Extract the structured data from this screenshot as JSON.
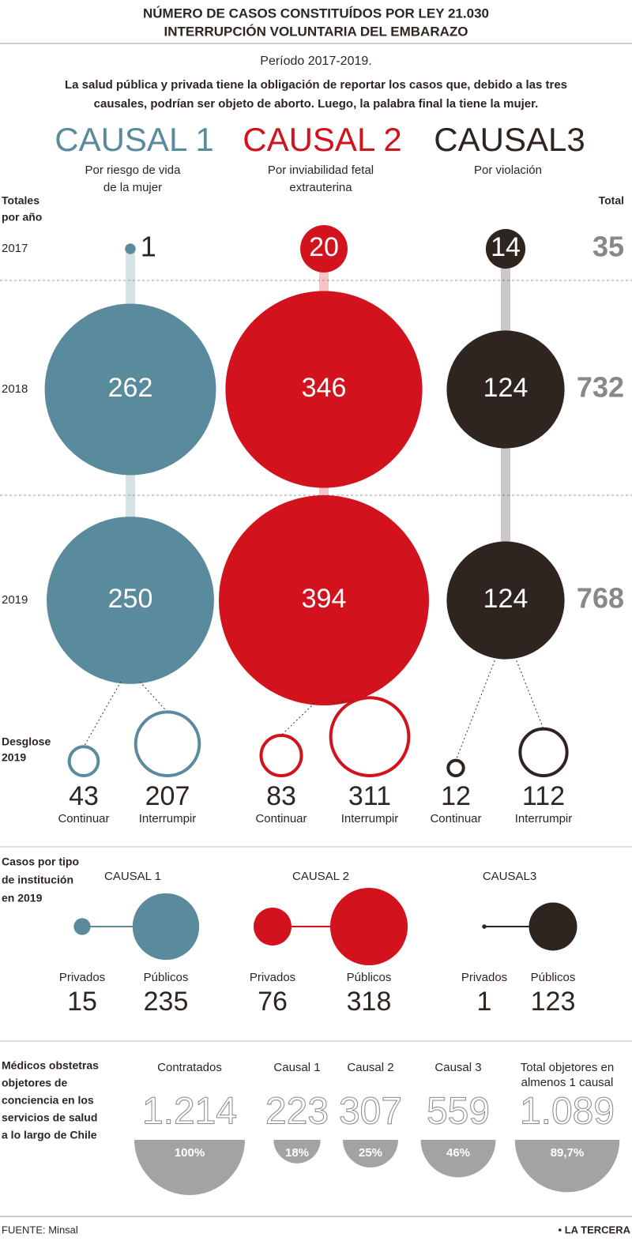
{
  "header": {
    "title": [
      "NÚMERO DE CASOS CONSTITUÍDOS POR LEY 21.030",
      "INTERRUPCIÓN  VOLUNTARIA DEL EMBARAZO"
    ],
    "period": "Período 2017-2019.",
    "intro": [
      "La salud pública y privada tiene la obligación de reportar los casos que, debido a las tres",
      "causales, podrían ser objeto de aborto. Luego, la palabra final la tiene la mujer."
    ]
  },
  "yearly": {
    "title": [
      "Totales",
      "por año"
    ],
    "total_title": "Total",
    "years": [
      2017,
      2018,
      2019
    ],
    "totals": [
      35,
      732,
      768
    ]
  },
  "causales": [
    {
      "name": "CAUSAL 1",
      "description": [
        "Por riesgo de vida",
        "de la mujer"
      ],
      "color": "#5a8b9c",
      "values": [
        1,
        262,
        250
      ],
      "continuar": 43,
      "interrumpir": 207,
      "institution_label": "CAUSAL 1",
      "privados": 15,
      "publicos": 235
    },
    {
      "name": "CAUSAL 2",
      "description": [
        "Por inviabilidad fetal",
        "extrauterina"
      ],
      "color": "#d2121d",
      "values": [
        20,
        346,
        394
      ],
      "continuar": 83,
      "interrumpir": 311,
      "institution_label": "CAUSAL 2",
      "privados": 76,
      "publicos": 318
    },
    {
      "name": "CAUSAL3",
      "description": [
        "Por violación"
      ],
      "color": "#2e2520",
      "values": [
        14,
        124,
        124
      ],
      "continuar": 12,
      "interrumpir": 112,
      "institution_label": "CAUSAL3",
      "privados": 1,
      "publicos": 123
    }
  ],
  "breakdown": {
    "title": [
      "Desglose",
      "2019"
    ],
    "continuar_label": "Continuar",
    "interrumpir_label": "Interrumpir"
  },
  "institution": {
    "title": [
      "Casos por tipo",
      "de institución",
      "en 2019"
    ],
    "privados_label": "Privados",
    "publicos_label": "Públicos"
  },
  "medicos": {
    "title": [
      "Médicos obstetras",
      "objetores de",
      "conciencia en los",
      "servicios de salud",
      "a lo largo de Chile"
    ],
    "color": "#a5a3a2",
    "columns": [
      {
        "label": [
          "Contratados"
        ],
        "count": {
          "value": 1214,
          "label": "1.214"
        },
        "percent": {
          "value": 100,
          "label": "100%"
        }
      },
      {
        "label": [
          "Causal 1"
        ],
        "count": 223,
        "percent": {
          "value": 18,
          "label": "18%"
        }
      },
      {
        "label": [
          "Causal 2"
        ],
        "count": 307,
        "percent": {
          "value": 25,
          "label": "25%"
        }
      },
      {
        "label": [
          "Causal 3"
        ],
        "count": 559,
        "percent": {
          "value": 46,
          "label": "46%"
        }
      },
      {
        "label": [
          "Total objetores en",
          "almenos 1 causal"
        ],
        "count": {
          "value": 1089,
          "label": "1.089"
        },
        "percent": {
          "value": 89.7,
          "label": "89,7%"
        }
      }
    ]
  },
  "footer": {
    "source": "FUENTE: Minsal",
    "brand": "• LA TERCERA"
  }
}
